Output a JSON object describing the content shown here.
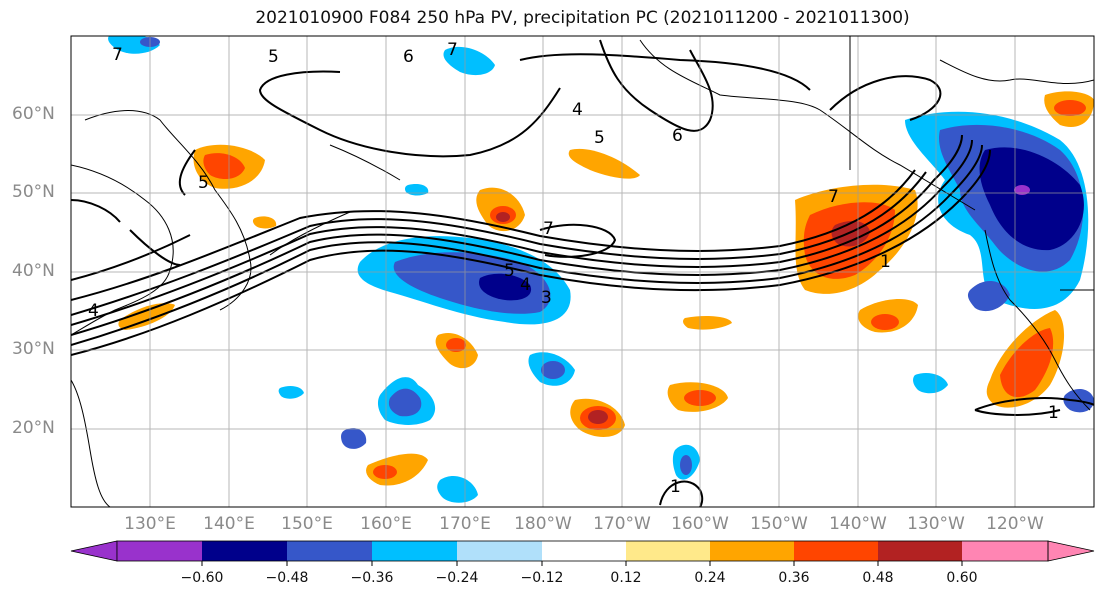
{
  "title": "2021010900 F084 250 hPa PV, precipitation PC (2021011200 - 2021011300)",
  "lat_labels": [
    "60°N",
    "50°N",
    "40°N",
    "30°N",
    "20°N"
  ],
  "lon_labels": [
    "130°E",
    "140°E",
    "150°E",
    "160°E",
    "170°E",
    "180°W",
    "170°W",
    "160°W",
    "150°W",
    "140°W",
    "130°W",
    "120°W"
  ],
  "contour_labels": [
    "7",
    "5",
    "6",
    "7",
    "4",
    "5",
    "6",
    "5",
    "7",
    "7",
    "5",
    "4",
    "3",
    "4",
    "1",
    "1",
    "1"
  ],
  "colorbar": {
    "ticks": [
      "−0.60",
      "−0.48",
      "−0.36",
      "−0.24",
      "−0.12",
      "0.12",
      "0.24",
      "0.36",
      "0.48",
      "0.60"
    ],
    "colors": [
      "#9932cc",
      "#00008b",
      "#3657c9",
      "#00bfff",
      "#b0e0fa",
      "#ffffff",
      "#ffe98a",
      "#ffa500",
      "#ff4500",
      "#b22222",
      "#ff85b3"
    ]
  }
}
